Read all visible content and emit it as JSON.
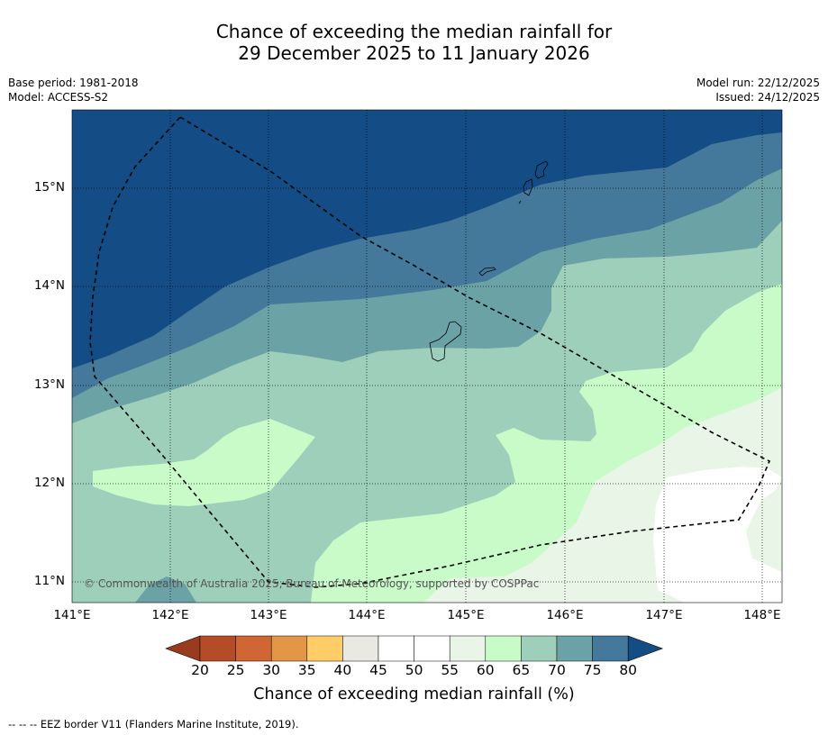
{
  "title": {
    "line1": "Chance of exceeding the median rainfall for",
    "line2": "29 December 2025 to 11 January 2026"
  },
  "meta": {
    "base_period": "Base period: 1981-2018",
    "model": "Model: ACCESS-S2",
    "model_run": "Model run: 22/12/2025",
    "issued": "Issued: 24/12/2025"
  },
  "map": {
    "lat_labels": [
      "15°N",
      "14°N",
      "13°N",
      "12°N",
      "11°N"
    ],
    "lon_labels": [
      "141°E",
      "142°E",
      "143°E",
      "144°E",
      "145°E",
      "146°E",
      "147°E",
      "148°E"
    ],
    "copyright": "© Commonwealth of Australia 2025, Bureau of Meteorology, supported by COSPPac"
  },
  "colorbar": {
    "ticks": [
      "20",
      "25",
      "30",
      "35",
      "40",
      "45",
      "50",
      "55",
      "60",
      "65",
      "70",
      "75",
      "80"
    ],
    "colors": [
      "#983b1f",
      "#b44c27",
      "#cf6633",
      "#e39646",
      "#fecd68",
      "#e9e8e3",
      "#ffffff",
      "#ffffff",
      "#e9f5e7",
      "#c9fbc9",
      "#9ecfba",
      "#6ba2a6",
      "#44799b",
      "#144d85",
      "#144d85"
    ],
    "title": "Chance of exceeding median rainfall (%)"
  },
  "footnote": "--  --  -- EEZ border V11 (Flanders Marine Institute, 2019)."
}
